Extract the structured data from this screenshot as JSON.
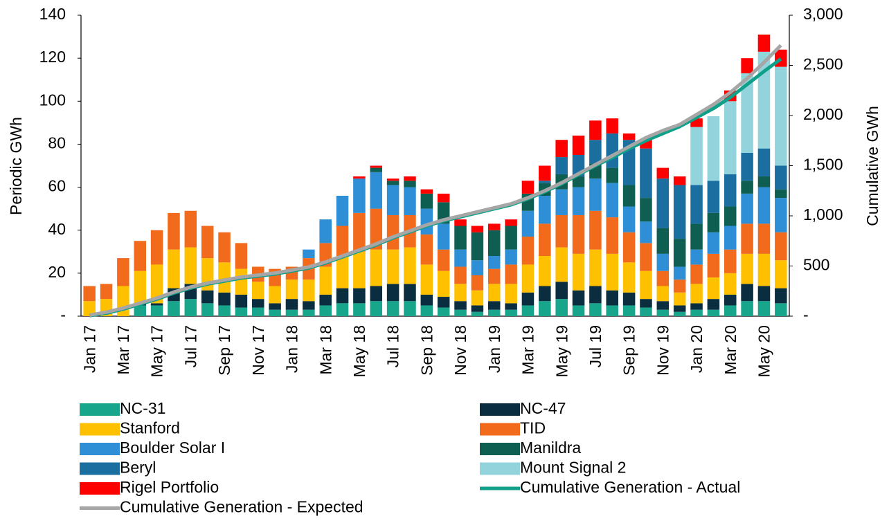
{
  "chart_data": {
    "type": "bar",
    "stacked": true,
    "legend": "bottom",
    "y_label": "Periodic GWh",
    "y2_label": "Cumulative GWh",
    "categories": [
      "Jan 17",
      null,
      "Mar 17",
      null,
      "May 17",
      null,
      "Jul 17",
      null,
      "Sep 17",
      null,
      "Nov 17",
      null,
      "Jan 18",
      null,
      "Mar 18",
      null,
      "May 18",
      null,
      "Jul 18",
      null,
      "Sep 18",
      null,
      "Nov 18",
      null,
      "Jan 19",
      null,
      "Mar 19",
      null,
      "May 19",
      null,
      "Jul 19",
      null,
      "Sep 19",
      null,
      "Nov 19",
      null,
      "Jan 20",
      null,
      "Mar 20",
      null,
      "May 20",
      null
    ],
    "ylim": [
      0,
      140
    ],
    "yticks": [
      {
        "value": 0,
        "label": "-"
      },
      20,
      40,
      60,
      80,
      100,
      120,
      140
    ],
    "y2lim": [
      0,
      3000
    ],
    "y2ticks": [
      {
        "value": 0,
        "label": "-"
      },
      500,
      {
        "value": 1000,
        "label": "1,000"
      },
      {
        "value": 1500,
        "label": "1,500"
      },
      {
        "value": 2000,
        "label": "2,000"
      },
      {
        "value": 2500,
        "label": "2,500"
      },
      {
        "value": 3000,
        "label": "3,000"
      }
    ],
    "series": [
      {
        "name": "NC-31",
        "color": "#17a58b",
        "values": [
          0,
          0,
          0,
          5,
          5,
          7,
          8,
          6,
          5,
          4,
          4,
          3,
          3,
          3,
          5,
          6,
          6,
          7,
          7,
          7,
          5,
          4,
          3,
          2,
          3,
          3,
          5,
          7,
          8,
          5,
          6,
          5,
          5,
          4,
          3,
          2,
          3,
          3,
          5,
          7,
          7,
          6
        ]
      },
      {
        "name": "NC-47",
        "color": "#0b2d40",
        "values": [
          0,
          0,
          0,
          1,
          1,
          6,
          7,
          6,
          6,
          6,
          4,
          3,
          5,
          4,
          5,
          7,
          7,
          7,
          8,
          8,
          5,
          5,
          4,
          3,
          4,
          3,
          6,
          7,
          8,
          7,
          8,
          7,
          6,
          4,
          4,
          3,
          3,
          5,
          5,
          8,
          7,
          7
        ]
      },
      {
        "name": "Stanford",
        "color": "#ffc000",
        "values": [
          7,
          8,
          14,
          15,
          18,
          18,
          17,
          15,
          14,
          12,
          8,
          8,
          9,
          10,
          13,
          15,
          17,
          17,
          16,
          17,
          14,
          12,
          8,
          7,
          8,
          9,
          13,
          14,
          16,
          17,
          17,
          17,
          14,
          13,
          7,
          6,
          9,
          10,
          10,
          14,
          15,
          13
        ]
      },
      {
        "name": "TID",
        "color": "#f26b1d",
        "values": [
          7,
          7,
          13,
          14,
          16,
          17,
          17,
          15,
          14,
          12,
          7,
          8,
          6,
          10,
          11,
          14,
          18,
          19,
          16,
          15,
          14,
          10,
          8,
          7,
          7,
          9,
          13,
          15,
          15,
          18,
          18,
          17,
          14,
          13,
          7,
          6,
          9,
          11,
          11,
          14,
          14,
          13
        ]
      },
      {
        "name": "Boulder Solar I",
        "color": "#2e8fd6",
        "values": [
          0,
          0,
          0,
          0,
          0,
          0,
          0,
          0,
          0,
          0,
          0,
          0,
          0,
          4,
          11,
          14,
          16,
          17,
          14,
          13,
          12,
          12,
          8,
          7,
          6,
          7,
          12,
          13,
          12,
          13,
          15,
          16,
          12,
          10,
          8,
          6,
          7,
          10,
          11,
          14,
          17,
          16
        ]
      },
      {
        "name": "Manildra",
        "color": "#0f5e52",
        "values": [
          0,
          0,
          0,
          0,
          0,
          0,
          0,
          0,
          0,
          0,
          0,
          0,
          0,
          0,
          0,
          0,
          0,
          2,
          2,
          3,
          7,
          10,
          11,
          13,
          12,
          11,
          8,
          6,
          7,
          5,
          7,
          7,
          10,
          11,
          12,
          13,
          12,
          9,
          9,
          6,
          5,
          4
        ]
      },
      {
        "name": "Beryl",
        "color": "#1a6fa0",
        "values": [
          0,
          0,
          0,
          0,
          0,
          0,
          0,
          0,
          0,
          0,
          0,
          0,
          0,
          0,
          0,
          0,
          0,
          0,
          0,
          0,
          0,
          0,
          0,
          0,
          0,
          0,
          0,
          1,
          8,
          10,
          11,
          16,
          21,
          23,
          23,
          25,
          18,
          15,
          15,
          13,
          13,
          11
        ]
      },
      {
        "name": "Mount Signal 2",
        "color": "#92d3dc",
        "values": [
          0,
          0,
          0,
          0,
          0,
          0,
          0,
          0,
          0,
          0,
          0,
          0,
          0,
          0,
          0,
          0,
          0,
          0,
          0,
          0,
          0,
          0,
          0,
          0,
          0,
          0,
          0,
          0,
          0,
          0,
          0,
          0,
          0,
          0,
          0,
          0,
          27,
          30,
          34,
          37,
          45,
          46
        ]
      },
      {
        "name": "Rigel Portfolio",
        "color": "#ff0000",
        "values": [
          0,
          0,
          0,
          0,
          0,
          0,
          0,
          0,
          0,
          0,
          0,
          0,
          0,
          0,
          0,
          0,
          1,
          1,
          1,
          2,
          2,
          4,
          3,
          3,
          3,
          3,
          6,
          7,
          8,
          9,
          9,
          7,
          3,
          4,
          5,
          4,
          4,
          0,
          5,
          7,
          8,
          8
        ]
      },
      {
        "name": "Cumulative Generation - Actual",
        "type": "line",
        "axis": "y2",
        "color": "#10a08a",
        "values": [
          5,
          30,
          70,
          120,
          170,
          230,
          280,
          320,
          350,
          380,
          400,
          420,
          450,
          480,
          530,
          590,
          650,
          710,
          780,
          840,
          900,
          950,
          990,
          1030,
          1070,
          1110,
          1170,
          1240,
          1320,
          1410,
          1500,
          1580,
          1670,
          1750,
          1820,
          1890,
          1980,
          2070,
          2180,
          2310,
          2440,
          2565
        ]
      },
      {
        "name": "Cumulative Generation - Expected",
        "type": "line",
        "axis": "y2",
        "color": "#a6a6a6",
        "values": [
          10,
          40,
          80,
          130,
          180,
          240,
          290,
          330,
          360,
          390,
          410,
          430,
          460,
          490,
          540,
          600,
          660,
          720,
          790,
          850,
          910,
          960,
          1000,
          1040,
          1080,
          1120,
          1180,
          1250,
          1330,
          1420,
          1510,
          1600,
          1690,
          1780,
          1850,
          1910,
          2010,
          2110,
          2230,
          2370,
          2530,
          2700
        ]
      }
    ]
  }
}
